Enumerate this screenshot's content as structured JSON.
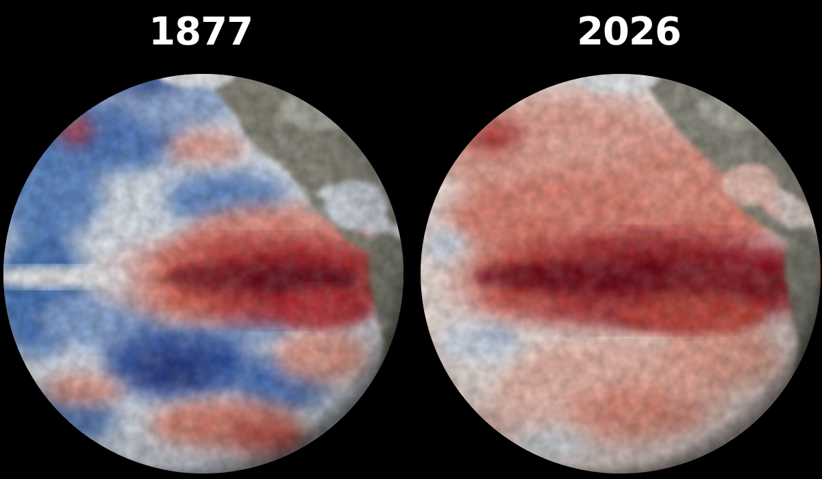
{
  "panels": [
    {
      "year": "1877",
      "pattern": "cool-blue-pacific-with-equatorial-warm-band"
    },
    {
      "year": "2026",
      "pattern": "warm-red-pacific-with-intense-equatorial-band"
    }
  ],
  "colors": {
    "background": "#000000",
    "label": "#ffffff",
    "cold": "#2c5aa8",
    "deep_cold": "#1a2f7a",
    "warm": "#d9624e",
    "hot": "#6e0610",
    "land": "#7b7a6c",
    "ice": "#e8ebf0"
  }
}
